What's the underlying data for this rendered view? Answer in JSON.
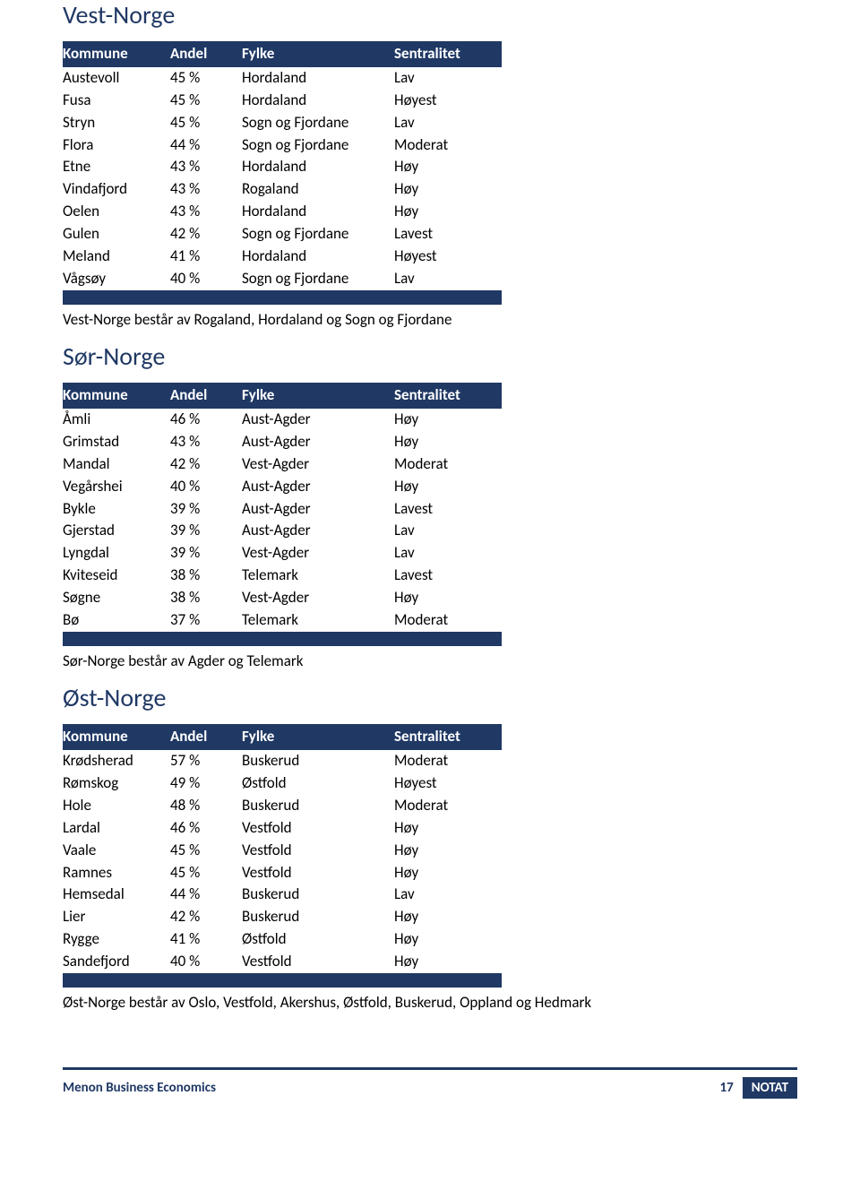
{
  "colors": {
    "navy": "#1f3864",
    "title": "#1f3864",
    "text": "#000000",
    "white": "#ffffff"
  },
  "column_widths": {
    "kommune": 120,
    "andel": 80,
    "fylke": 170,
    "sentralitet": 120
  },
  "sections": [
    {
      "title": "Vest-Norge",
      "headers": [
        "Kommune",
        "Andel",
        "Fylke",
        "Sentralitet"
      ],
      "rows": [
        [
          "Austevoll",
          "45 %",
          "Hordaland",
          "Lav"
        ],
        [
          "Fusa",
          "45 %",
          "Hordaland",
          "Høyest"
        ],
        [
          "Stryn",
          "45 %",
          "Sogn og Fjordane",
          "Lav"
        ],
        [
          "Flora",
          "44 %",
          "Sogn og Fjordane",
          "Moderat"
        ],
        [
          "Etne",
          "43 %",
          "Hordaland",
          "Høy"
        ],
        [
          "Vindafjord",
          "43 %",
          "Rogaland",
          "Høy"
        ],
        [
          "Oelen",
          "43 %",
          "Hordaland",
          "Høy"
        ],
        [
          "Gulen",
          "42 %",
          "Sogn og Fjordane",
          "Lavest"
        ],
        [
          "Meland",
          "41 %",
          "Hordaland",
          "Høyest"
        ],
        [
          "Vågsøy",
          "40 %",
          "Sogn og Fjordane",
          "Lav"
        ]
      ],
      "note": "Vest-Norge består av Rogaland, Hordaland og Sogn og Fjordane"
    },
    {
      "title": "Sør-Norge",
      "headers": [
        "Kommune",
        "Andel",
        "Fylke",
        "Sentralitet"
      ],
      "rows": [
        [
          "Åmli",
          "46 %",
          "Aust-Agder",
          "Høy"
        ],
        [
          "Grimstad",
          "43 %",
          "Aust-Agder",
          "Høy"
        ],
        [
          "Mandal",
          "42 %",
          "Vest-Agder",
          "Moderat"
        ],
        [
          "Vegårshei",
          "40 %",
          "Aust-Agder",
          "Høy"
        ],
        [
          "Bykle",
          "39 %",
          "Aust-Agder",
          "Lavest"
        ],
        [
          "Gjerstad",
          "39 %",
          "Aust-Agder",
          "Lav"
        ],
        [
          "Lyngdal",
          "39 %",
          "Vest-Agder",
          "Lav"
        ],
        [
          "Kviteseid",
          "38 %",
          "Telemark",
          "Lavest"
        ],
        [
          "Søgne",
          "38 %",
          "Vest-Agder",
          "Høy"
        ],
        [
          "Bø",
          "37 %",
          "Telemark",
          "Moderat"
        ]
      ],
      "note": "Sør-Norge består av Agder og Telemark"
    },
    {
      "title": "Øst-Norge",
      "headers": [
        "Kommune",
        "Andel",
        "Fylke",
        "Sentralitet"
      ],
      "rows": [
        [
          "Krødsherad",
          "57 %",
          "Buskerud",
          "Moderat"
        ],
        [
          "Rømskog",
          "49 %",
          "Østfold",
          "Høyest"
        ],
        [
          "Hole",
          "48 %",
          "Buskerud",
          "Moderat"
        ],
        [
          "Lardal",
          "46 %",
          "Vestfold",
          "Høy"
        ],
        [
          "Vaale",
          "45 %",
          "Vestfold",
          "Høy"
        ],
        [
          "Ramnes",
          "45 %",
          "Vestfold",
          "Høy"
        ],
        [
          "Hemsedal",
          "44 %",
          "Buskerud",
          "Lav"
        ],
        [
          "Lier",
          "42 %",
          "Buskerud",
          "Høy"
        ],
        [
          "Rygge",
          "41 %",
          "Østfold",
          "Høy"
        ],
        [
          "Sandefjord",
          "40 %",
          "Vestfold",
          "Høy"
        ]
      ],
      "note": "Øst-Norge består av Oslo, Vestfold, Akershus, Østfold, Buskerud, Oppland og Hedmark"
    }
  ],
  "footer": {
    "left": "Menon Business Economics",
    "page": "17",
    "badge": "NOTAT"
  }
}
